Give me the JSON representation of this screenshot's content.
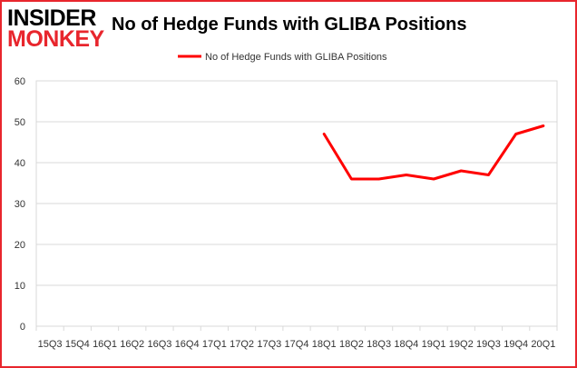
{
  "branding": {
    "logo_top": "INSIDER",
    "logo_bottom": "MONKEY",
    "logo_top_color": "#000000",
    "logo_bottom_color": "#e8262d"
  },
  "colors": {
    "series_line": "#ff0000",
    "plot_border": "#d9d9d9",
    "grid": "#d9d9d9",
    "frame_border": "#e8262d",
    "tick_text": "#333333"
  },
  "chart_data": {
    "type": "line",
    "title": "No of Hedge Funds with GLIBA Positions",
    "xlabel": "",
    "ylabel": "",
    "categories": [
      "15Q3",
      "15Q4",
      "16Q1",
      "16Q2",
      "16Q3",
      "16Q4",
      "17Q1",
      "17Q2",
      "17Q3",
      "17Q4",
      "18Q1",
      "18Q2",
      "18Q3",
      "18Q4",
      "19Q1",
      "19Q2",
      "19Q3",
      "19Q4",
      "20Q1"
    ],
    "series": [
      {
        "name": "No of Hedge Funds with GLIBA Positions",
        "values": [
          null,
          null,
          null,
          null,
          null,
          null,
          null,
          null,
          null,
          null,
          47,
          36,
          36,
          37,
          36,
          38,
          37,
          47,
          49
        ]
      }
    ],
    "ylim": [
      0,
      60
    ],
    "yticks": [
      0,
      10,
      20,
      30,
      40,
      50,
      60
    ],
    "grid": "horizontal",
    "legend_position": "top-center"
  }
}
